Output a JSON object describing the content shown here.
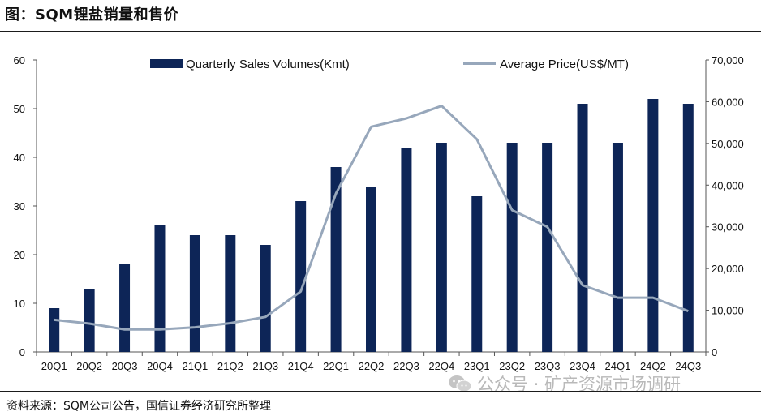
{
  "header": {
    "title": "图：SQM锂盐销量和售价"
  },
  "footer": {
    "source": "资料来源：SQM公司公告，国信证券经济研究所整理"
  },
  "watermark": {
    "text": "公众号 · 矿产资源市场调研",
    "icon": "wechat-icon"
  },
  "colors": {
    "bar": "#0d2557",
    "line": "#97a7bb",
    "axis": "#555555"
  },
  "chart_data": {
    "type": "bar+line",
    "title": "SQM锂盐销量和售价",
    "categories": [
      "20Q1",
      "20Q2",
      "20Q3",
      "20Q4",
      "21Q1",
      "21Q2",
      "21Q3",
      "21Q4",
      "22Q1",
      "22Q2",
      "22Q3",
      "22Q4",
      "23Q1",
      "23Q2",
      "23Q3",
      "23Q4",
      "24Q1",
      "24Q2",
      "24Q3"
    ],
    "series": [
      {
        "name": "Quarterly Sales Volumes(Kmt)",
        "type": "bar",
        "axis": "left",
        "values": [
          9,
          13,
          18,
          26,
          24,
          24,
          22,
          31,
          38,
          34,
          42,
          43,
          32,
          43,
          43,
          51,
          43,
          52,
          51
        ]
      },
      {
        "name": "Average Price(US$/MT)",
        "type": "line",
        "axis": "right",
        "values": [
          7700,
          6800,
          5400,
          5400,
          5900,
          6900,
          8400,
          14500,
          38000,
          54000,
          56000,
          59000,
          51000,
          34000,
          30000,
          16000,
          13000,
          13000,
          9800
        ]
      }
    ],
    "left_axis": {
      "ylim": [
        0,
        60
      ],
      "ticks": [
        "0",
        "10",
        "20",
        "30",
        "40",
        "50",
        "60"
      ]
    },
    "right_axis": {
      "ylim": [
        0,
        70000
      ],
      "ticks": [
        "0",
        "10,000",
        "20,000",
        "30,000",
        "40,000",
        "50,000",
        "60,000",
        "70,000"
      ]
    },
    "legend": {
      "position": "top",
      "entries": [
        "Quarterly Sales Volumes(Kmt)",
        "Average Price(US$/MT)"
      ]
    },
    "grid": false
  }
}
